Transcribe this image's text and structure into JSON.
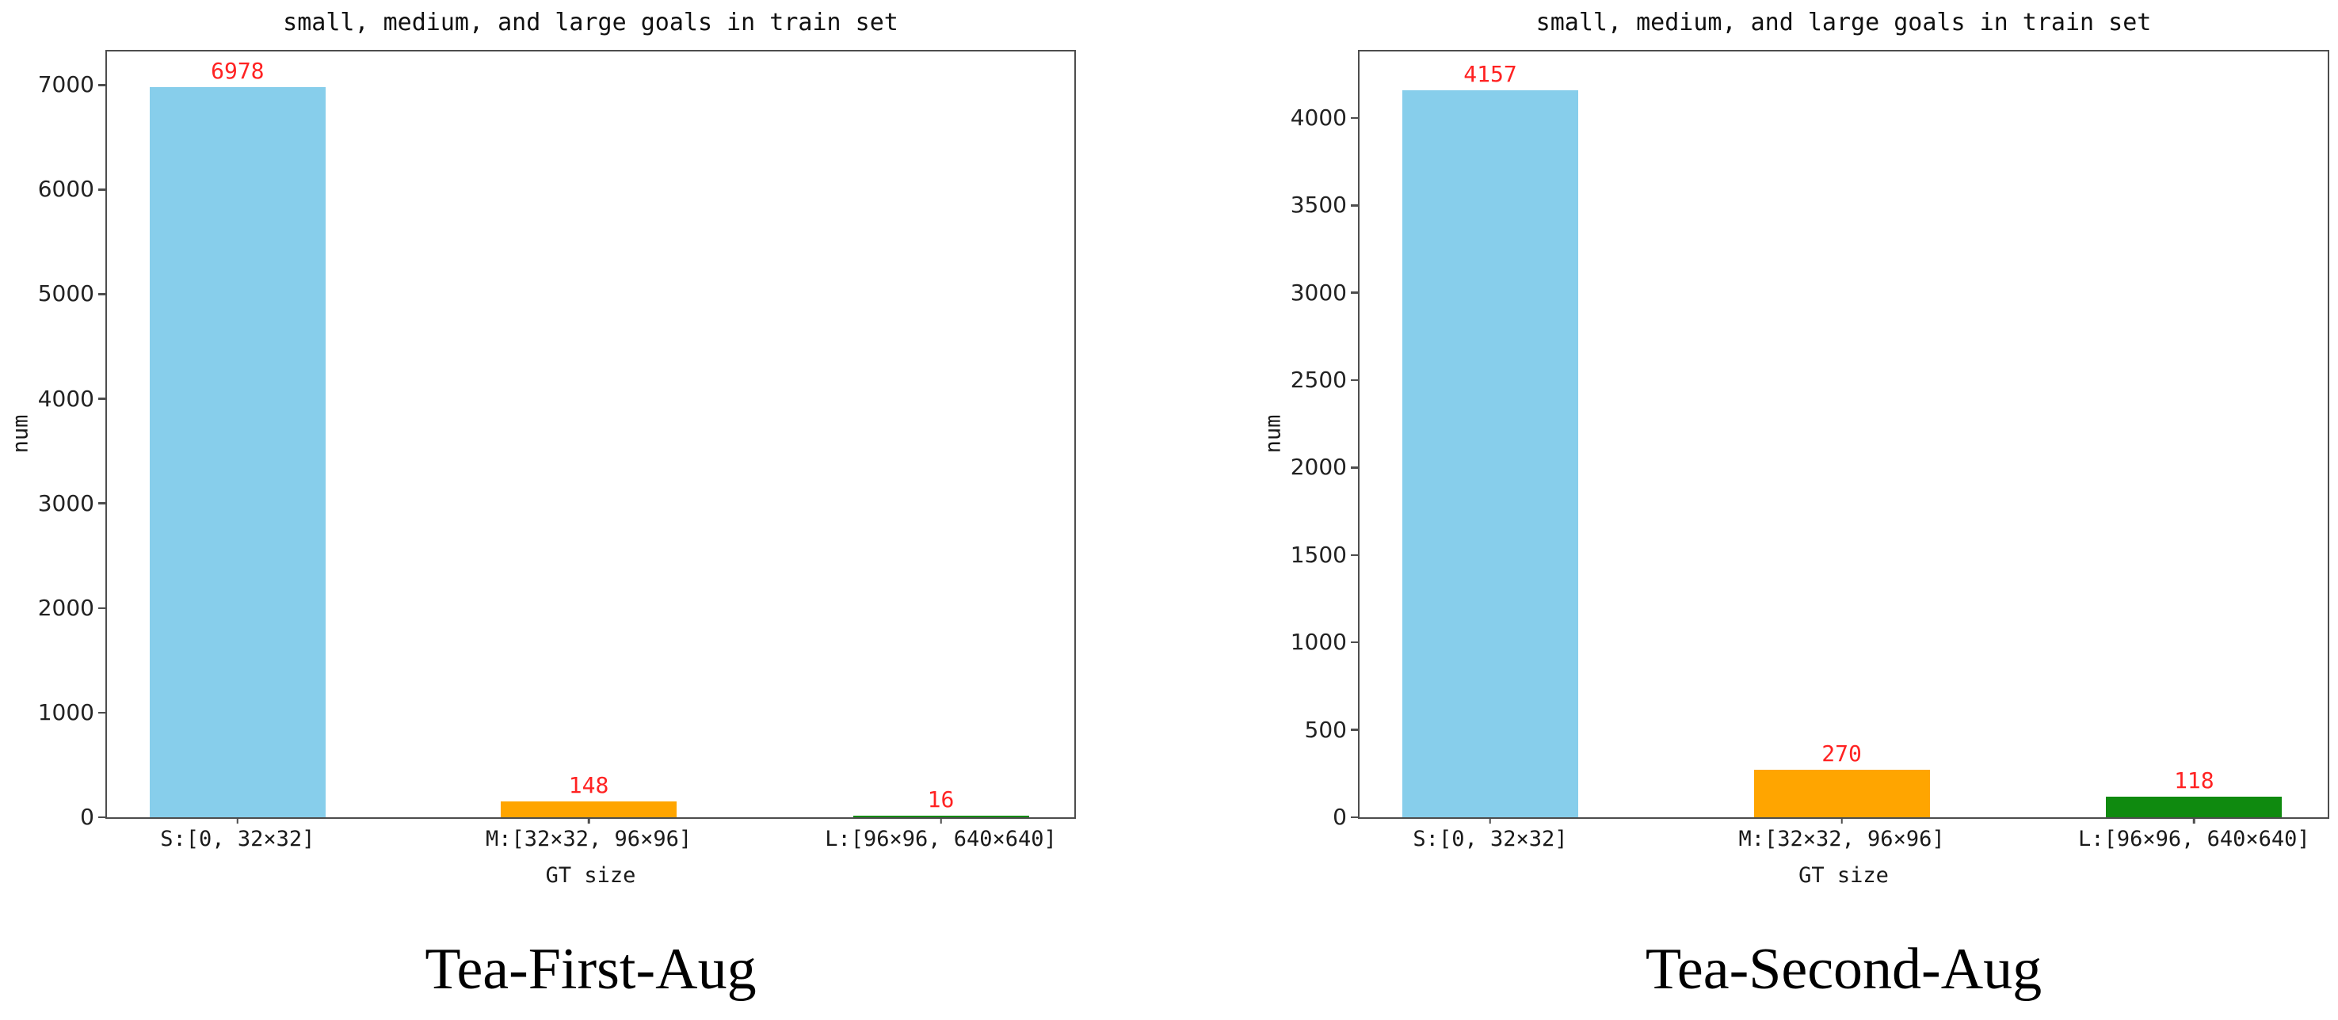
{
  "chart_data": [
    {
      "type": "bar",
      "title": "small, medium, and large goals in train set",
      "xlabel": "GT size",
      "ylabel": "num",
      "caption": "Tea-First-Aug",
      "categories": [
        "S:[0, 32×32]",
        "M:[32×32, 96×96]",
        "L:[96×96, 640×640]"
      ],
      "values": [
        6978,
        148,
        16
      ],
      "value_labels": [
        "6978",
        "148",
        "16"
      ],
      "bar_colors": [
        "#87CEEB",
        "#FFA500",
        "#0f8a0f"
      ],
      "value_label_color": "#ff2222",
      "yticks": [
        0,
        1000,
        2000,
        3000,
        4000,
        5000,
        6000,
        7000
      ],
      "ylim": [
        0,
        7320
      ],
      "grid": false,
      "legend": null
    },
    {
      "type": "bar",
      "title": "small, medium, and large goals in train set",
      "xlabel": "GT size",
      "ylabel": "num",
      "caption": "Tea-Second-Aug",
      "categories": [
        "S:[0, 32×32]",
        "M:[32×32, 96×96]",
        "L:[96×96, 640×640]"
      ],
      "values": [
        4157,
        270,
        118
      ],
      "value_labels": [
        "4157",
        "270",
        "118"
      ],
      "bar_colors": [
        "#87CEEB",
        "#FFA500",
        "#0f8a0f"
      ],
      "value_label_color": "#ff2222",
      "yticks": [
        0,
        500,
        1000,
        1500,
        2000,
        2500,
        3000,
        3500,
        4000
      ],
      "ylim": [
        0,
        4380
      ],
      "grid": false,
      "legend": null
    }
  ]
}
